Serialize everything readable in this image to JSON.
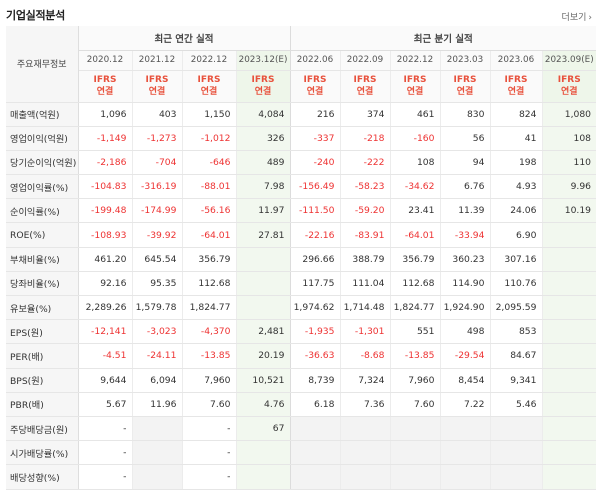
{
  "section_title": "기업실적분석",
  "more_label": "더보기",
  "header": {
    "corner_label": "주요재무정보",
    "annual_group": "최근 연간 실적",
    "quarter_group": "최근 분기 실적",
    "ifrs_line1": "IFRS",
    "ifrs_line2": "연결",
    "periods": [
      "2020.12",
      "2021.12",
      "2022.12",
      "2023.12(E)",
      "2022.06",
      "2022.09",
      "2022.12",
      "2023.03",
      "2023.06",
      "2023.09(E)"
    ]
  },
  "rows": [
    {
      "label": "매출액(억원)",
      "values": [
        "1,096",
        "403",
        "1,150",
        "4,084",
        "216",
        "374",
        "461",
        "830",
        "824",
        "1,080"
      ]
    },
    {
      "label": "영업이익(억원)",
      "values": [
        "-1,149",
        "-1,273",
        "-1,012",
        "326",
        "-337",
        "-218",
        "-160",
        "56",
        "41",
        "108"
      ]
    },
    {
      "label": "당기순이익(억원)",
      "values": [
        "-2,186",
        "-704",
        "-646",
        "489",
        "-240",
        "-222",
        "108",
        "94",
        "198",
        "110"
      ]
    },
    {
      "label": "영업이익률(%)",
      "values": [
        "-104.83",
        "-316.19",
        "-88.01",
        "7.98",
        "-156.49",
        "-58.23",
        "-34.62",
        "6.76",
        "4.93",
        "9.96"
      ]
    },
    {
      "label": "순이익률(%)",
      "values": [
        "-199.48",
        "-174.99",
        "-56.16",
        "11.97",
        "-111.50",
        "-59.20",
        "23.41",
        "11.39",
        "24.06",
        "10.19"
      ]
    },
    {
      "label": "ROE(%)",
      "values": [
        "-108.93",
        "-39.92",
        "-64.01",
        "27.81",
        "-22.16",
        "-83.91",
        "-64.01",
        "-33.94",
        "6.90",
        ""
      ]
    },
    {
      "label": "부채비율(%)",
      "values": [
        "461.20",
        "645.54",
        "356.79",
        "",
        "296.66",
        "388.79",
        "356.79",
        "360.23",
        "307.16",
        ""
      ]
    },
    {
      "label": "당좌비율(%)",
      "values": [
        "92.16",
        "95.35",
        "112.68",
        "",
        "117.75",
        "111.04",
        "112.68",
        "114.90",
        "110.76",
        ""
      ]
    },
    {
      "label": "유보율(%)",
      "values": [
        "2,289.26",
        "1,579.78",
        "1,824.77",
        "",
        "1,974.62",
        "1,714.48",
        "1,824.77",
        "1,924.90",
        "2,095.59",
        ""
      ]
    },
    {
      "label": "EPS(원)",
      "values": [
        "-12,141",
        "-3,023",
        "-4,370",
        "2,481",
        "-1,935",
        "-1,301",
        "551",
        "498",
        "853",
        ""
      ]
    },
    {
      "label": "PER(배)",
      "values": [
        "-4.51",
        "-24.11",
        "-13.85",
        "20.19",
        "-36.63",
        "-8.68",
        "-13.85",
        "-29.54",
        "84.67",
        ""
      ]
    },
    {
      "label": "BPS(원)",
      "values": [
        "9,644",
        "6,094",
        "7,960",
        "10,521",
        "8,739",
        "7,324",
        "7,960",
        "8,454",
        "9,341",
        ""
      ]
    },
    {
      "label": "PBR(배)",
      "values": [
        "5.67",
        "11.96",
        "7.60",
        "4.76",
        "6.18",
        "7.36",
        "7.60",
        "7.22",
        "5.46",
        ""
      ]
    },
    {
      "label": "주당배당금(원)",
      "values": [
        "-",
        "",
        "-",
        "67",
        "",
        "",
        "",
        "",
        "",
        ""
      ]
    },
    {
      "label": "시가배당률(%)",
      "values": [
        "-",
        "",
        "-",
        "",
        "",
        "",
        "",
        "",
        "",
        ""
      ]
    },
    {
      "label": "배당성향(%)",
      "values": [
        "-",
        "",
        "-",
        "",
        "",
        "",
        "",
        "",
        "",
        ""
      ]
    }
  ]
}
